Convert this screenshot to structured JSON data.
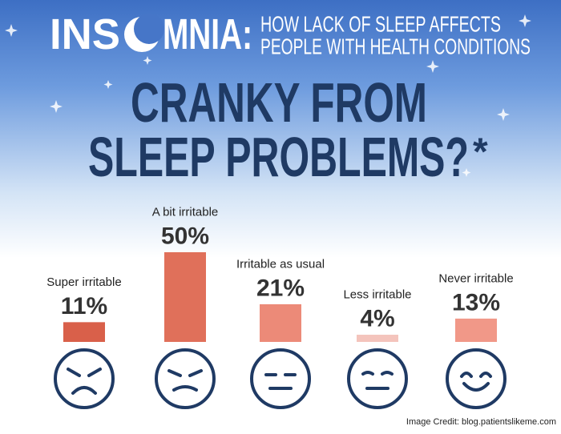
{
  "header": {
    "brand_left": "INS",
    "brand_right": "MNIA:",
    "subtitle_lines": [
      "HOW LACK OF SLEEP AFFECTS",
      "PEOPLE WITH HEALTH CONDITIONS"
    ],
    "headline_lines": [
      "CRANKY FROM",
      "SLEEP PROBLEMS?"
    ],
    "asterisk": "*"
  },
  "chart_data": {
    "type": "bar",
    "categories": [
      "Super irritable",
      "A bit irritable",
      "Irritable as usual",
      "Less irritable",
      "Never irritable"
    ],
    "values": [
      11,
      50,
      21,
      4,
      13
    ],
    "value_labels": [
      "11%",
      "50%",
      "21%",
      "4%",
      "13%"
    ],
    "colors": [
      "#d9604a",
      "#e0705a",
      "#ec8a78",
      "#f4c4bc",
      "#f19888"
    ]
  },
  "footer": {
    "credit": "Image Credit: blog.patientslikeme.com"
  }
}
